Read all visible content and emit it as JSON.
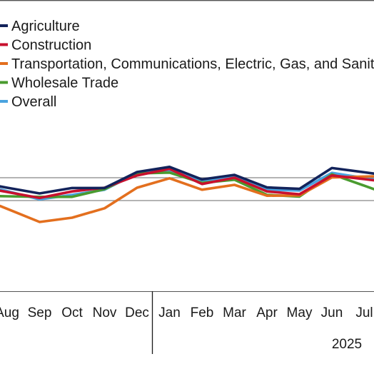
{
  "chart_data": {
    "type": "line",
    "title": "",
    "xlabel": "",
    "ylabel": "",
    "categories": [
      "Aug",
      "Sep",
      "Oct",
      "Nov",
      "Dec",
      "Jan",
      "Feb",
      "Mar",
      "Apr",
      "May",
      "Jun",
      "Jul"
    ],
    "year_label": "2025",
    "grid": "horizontal",
    "legend_position": "top-left",
    "series": [
      {
        "name": "Agriculture",
        "color": "#13235b",
        "values": [
          45,
          25,
          44,
          44,
          100,
          118,
          74,
          90,
          46,
          41,
          114,
          99
        ]
      },
      {
        "name": "Construction",
        "color": "#c8102e",
        "values": [
          30,
          9,
          32,
          45,
          88,
          111,
          58,
          80,
          32,
          22,
          88,
          75
        ]
      },
      {
        "name": "Transportation, Communications, Electric, Gas, and Sanitary",
        "color": "#e36f1e",
        "values": [
          -29,
          -75,
          -60,
          -27,
          45,
          78,
          38,
          55,
          17,
          18,
          81,
          84
        ]
      },
      {
        "name": "Wholesale Trade",
        "color": "#4a9b2f",
        "values": [
          15,
          13,
          13,
          40,
          95,
          98,
          62,
          73,
          20,
          14,
          92,
          52
        ]
      },
      {
        "name": "Overall",
        "color": "#4aa3df",
        "values": [
          33,
          4,
          20,
          38,
          96,
          107,
          66,
          83,
          38,
          35,
          97,
          79
        ]
      }
    ]
  }
}
